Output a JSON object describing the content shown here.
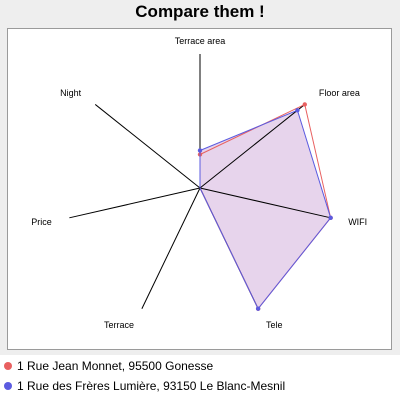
{
  "title": "Compare them !",
  "chart_data": {
    "type": "radar",
    "axes": [
      "Terrace area",
      "Floor area",
      "WIFI",
      "Tele",
      "Terrace",
      "Price",
      "Night"
    ],
    "range": [
      0,
      1
    ],
    "series": [
      {
        "name": "1 Rue Jean Monnet, 95500 Gonesse",
        "color": "#e86060",
        "values": [
          0.25,
          1.0,
          1.0,
          1.0,
          0.0,
          0.0,
          0.0
        ]
      },
      {
        "name": "1 Rue des Frères Lumière, 93150 Le Blanc-Mesnil",
        "color": "#5b5be0",
        "values": [
          0.28,
          0.93,
          1.0,
          1.0,
          0.0,
          0.0,
          0.0
        ]
      }
    ],
    "fill": "#e3cde9"
  }
}
